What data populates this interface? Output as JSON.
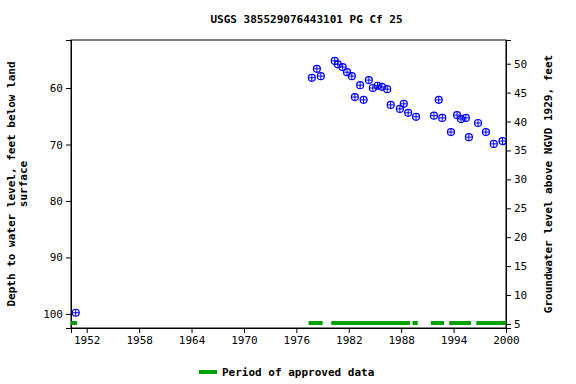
{
  "chart_data": {
    "type": "scatter",
    "title": "USGS 385529076443101 PG Cf  25",
    "ylabel": [
      "Depth to water level, feet below land",
      "surface"
    ],
    "y2label": "Groundwater level above NGVD 1929, feet",
    "x": [
      1950.74,
      1977.77,
      1978.35,
      1978.8,
      1980.4,
      1980.75,
      1981.3,
      1981.8,
      1982.35,
      1982.7,
      1983.3,
      1983.7,
      1984.3,
      1984.76,
      1985.3,
      1985.8,
      1986.4,
      1986.8,
      1987.85,
      1988.3,
      1988.8,
      1989.7,
      1991.75,
      1992.3,
      1992.7,
      1993.7,
      1994.4,
      1994.85,
      1995.4,
      1995.75,
      1996.8,
      1997.7,
      1998.6,
      1999.6
    ],
    "values": [
      99.8,
      58.2,
      56.6,
      57.9,
      55.2,
      55.8,
      56.3,
      57.2,
      57.9,
      61.6,
      59.5,
      62.1,
      58.6,
      60.0,
      59.6,
      59.8,
      60.2,
      63.0,
      63.7,
      62.8,
      64.4,
      65.1,
      64.9,
      62.1,
      65.3,
      67.8,
      64.8,
      65.5,
      65.3,
      68.7,
      66.2,
      67.8,
      69.9,
      69.4
    ],
    "color": "#0000ff",
    "marker": "circle-plus",
    "xlim": [
      1950.2,
      2000
    ],
    "xticks": [
      1952,
      1958,
      1964,
      1970,
      1976,
      1982,
      1988,
      1994,
      2000
    ],
    "ylim": [
      51.5,
      102.5
    ],
    "yticks": [
      60,
      70,
      80,
      90,
      100
    ],
    "y2lim": [
      54.1,
      4.3
    ],
    "y2ticks": [
      5,
      10,
      15,
      20,
      25,
      30,
      35,
      40,
      45,
      50
    ],
    "approved_periods": [
      [
        1950.05,
        1950.9
      ],
      [
        1977.4,
        1979.0
      ],
      [
        1980.0,
        1989.0
      ],
      [
        1989.3,
        1989.9
      ],
      [
        1991.4,
        1992.9
      ],
      [
        1993.5,
        1996.0
      ],
      [
        1996.6,
        2000
      ]
    ],
    "approved_color": "#00a000",
    "approved_label": "Period of approved data"
  }
}
